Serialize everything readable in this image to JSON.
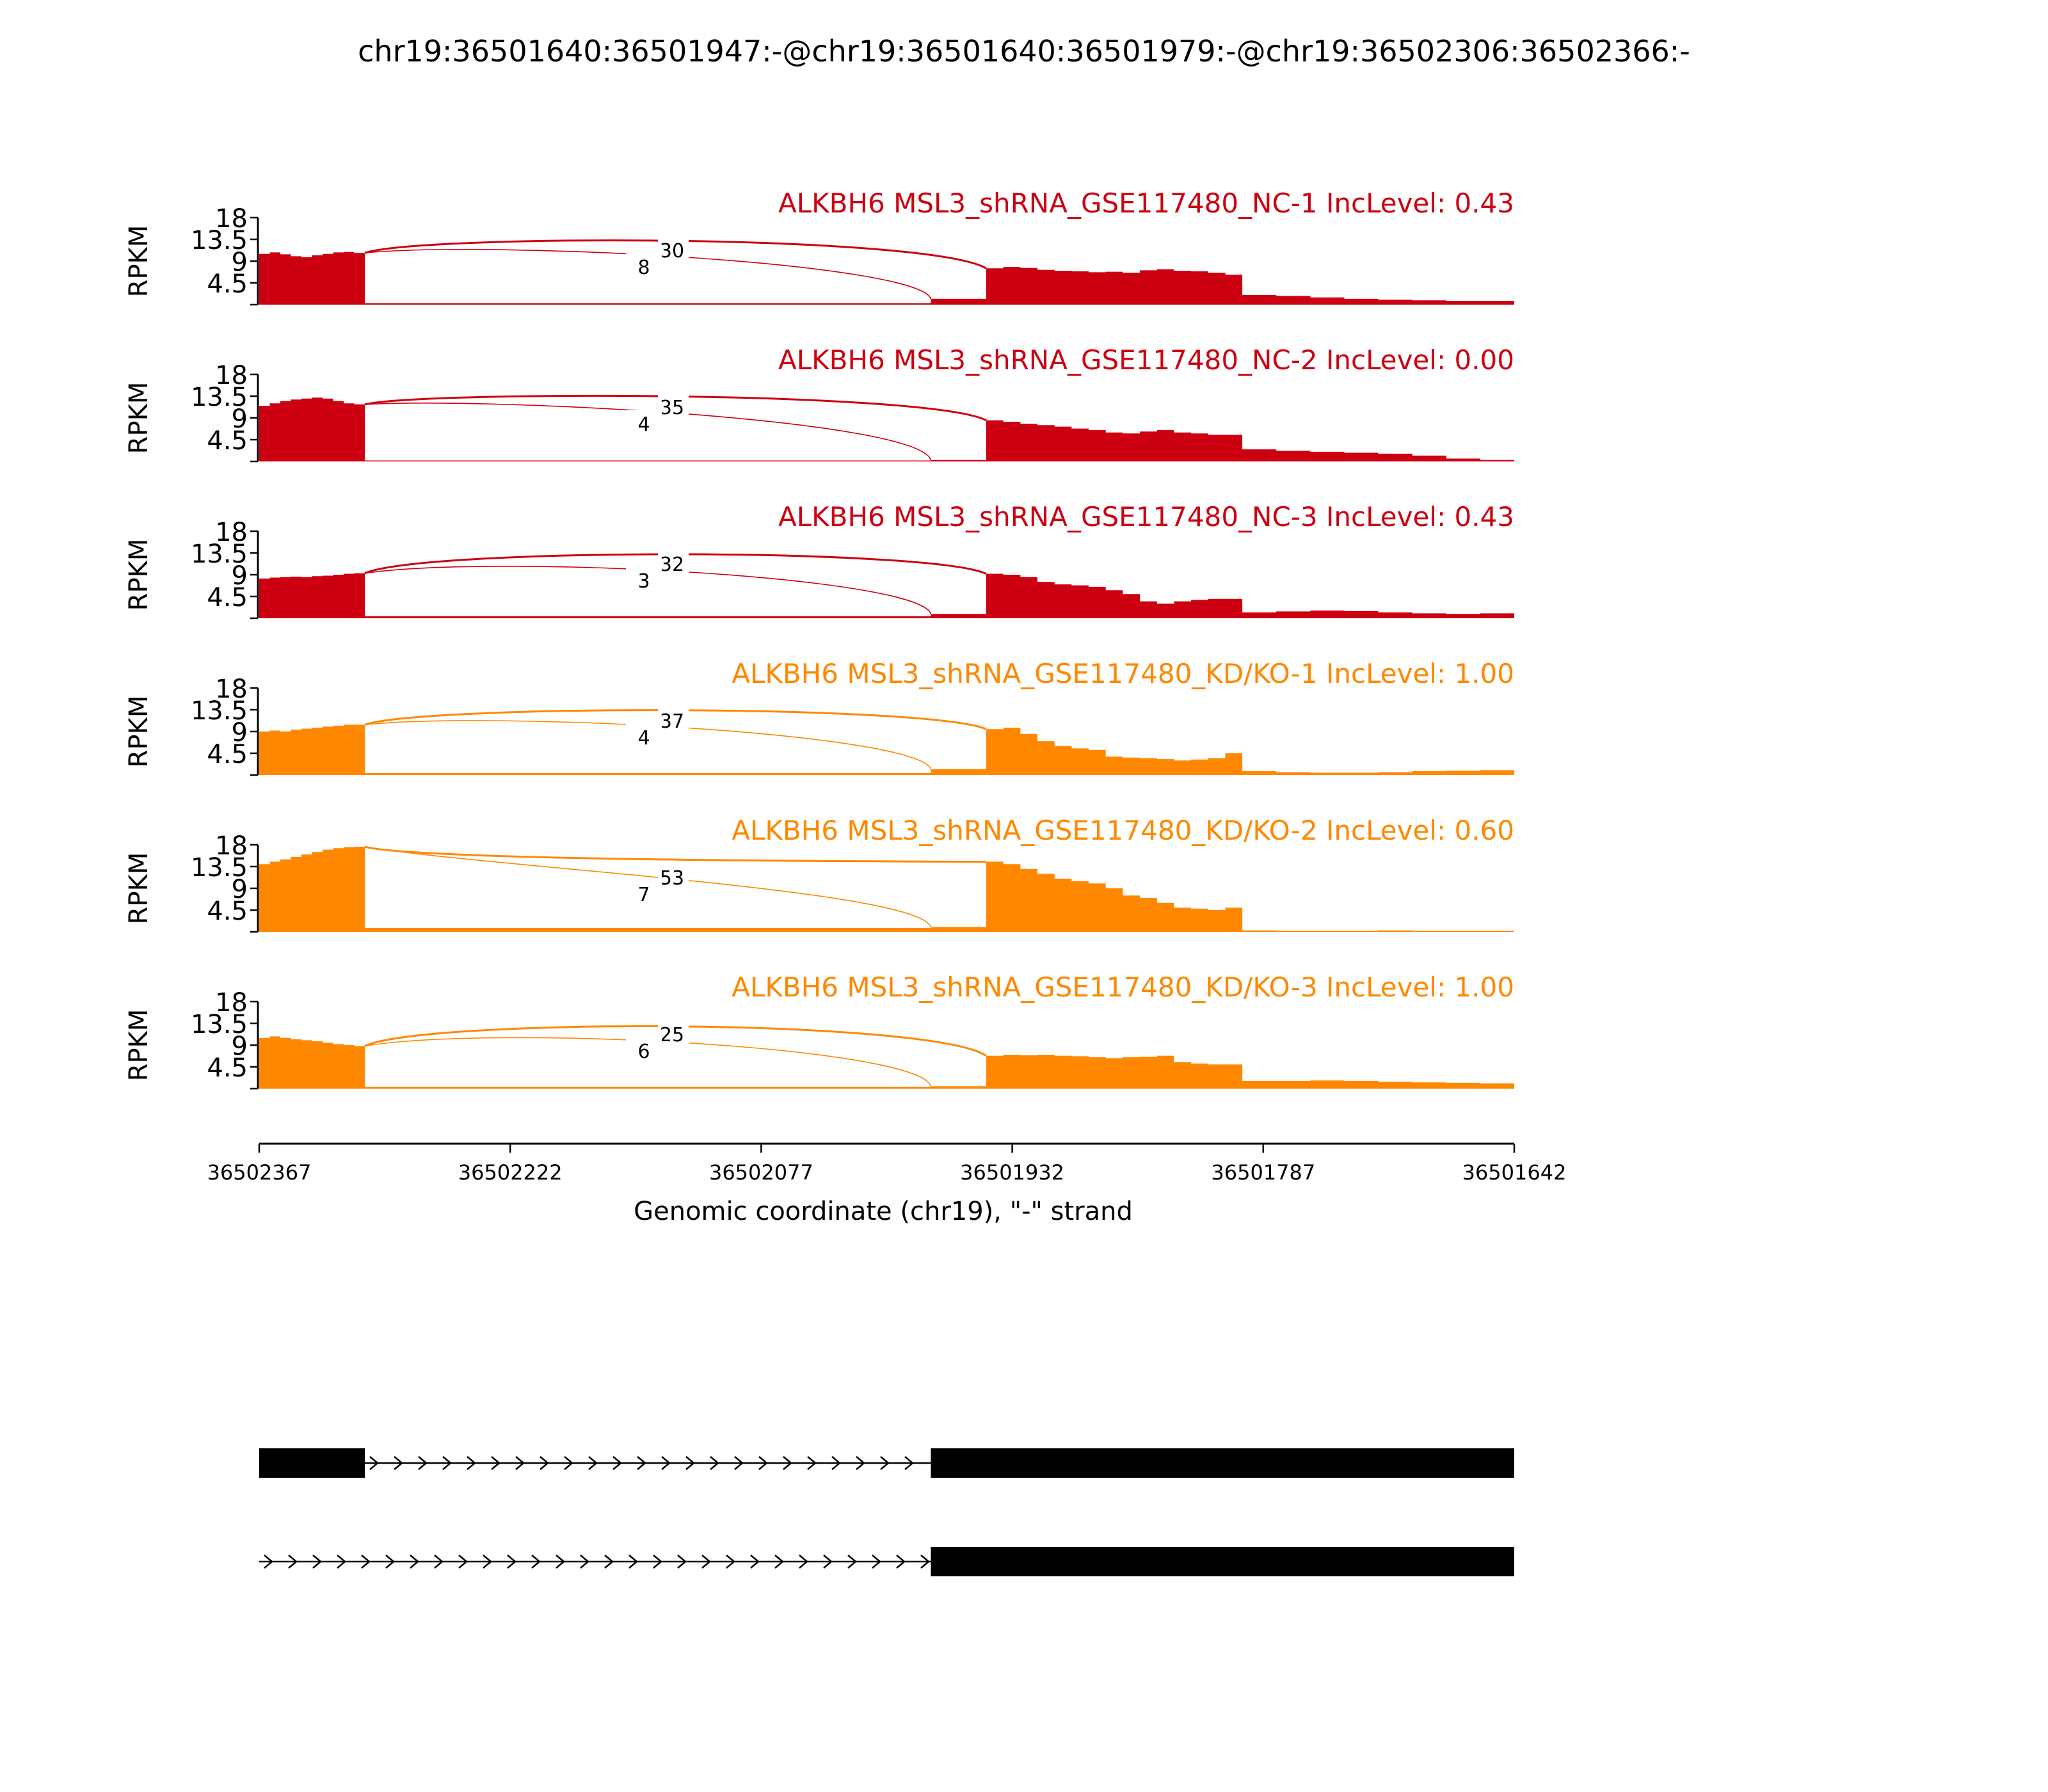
{
  "chart_data": {
    "type": "sashimi",
    "title": "chr19:36501640:36501947:-@chr19:36501640:36501979:-@chr19:36502306:36502366:-",
    "xlabel": "Genomic coordinate (chr19), \"-\" strand",
    "ylabel": "RPKM",
    "ylim": [
      0,
      18
    ],
    "yticks": [
      "18",
      "13.5",
      "9",
      "4.5"
    ],
    "x_reversed": true,
    "xlim": [
      36502367,
      36501642
    ],
    "xticks": [
      "36502367",
      "36502222",
      "36502077",
      "36501932",
      "36501787",
      "36501642"
    ],
    "exons": {
      "upstream": [
        36502367,
        36502306
      ],
      "alt_start": 36501979,
      "alt_end": 36501947,
      "downstream_end": 36501642
    },
    "colors": {
      "NC": "#cc0011",
      "KD": "#ff8800"
    },
    "tracks": [
      {
        "label": "ALKBH6 MSL3_shRNA_GSE117480_NC-1 IncLevel: 0.43",
        "group": "NC",
        "junction_counts": [
          "30",
          "8"
        ],
        "coverage": {
          "upstream": [
            10.5,
            10.8,
            10.4,
            10.0,
            9.8,
            10.2,
            10.5,
            10.8,
            10.9,
            10.7
          ],
          "intron": 0.3,
          "alt_exon": 1.2,
          "exon2_a": [
            7.5,
            7.8,
            7.6,
            7.2,
            7.0,
            6.9,
            6.7,
            6.8,
            6.6,
            7.1,
            7.3,
            7.0,
            6.9,
            6.6,
            6.2
          ],
          "exon2_b": [
            2.0,
            1.8,
            1.5,
            1.2,
            1.0,
            0.9,
            0.8,
            0.8
          ]
        }
      },
      {
        "label": "ALKBH6 MSL3_shRNA_GSE117480_NC-2 IncLevel: 0.00",
        "group": "NC",
        "junction_counts": [
          "35",
          "4"
        ],
        "coverage": {
          "upstream": [
            11.5,
            12.0,
            12.5,
            12.8,
            13.0,
            13.2,
            13.0,
            12.5,
            12.0,
            11.8
          ],
          "intron": 0.2,
          "alt_exon": 0.3,
          "exon2_a": [
            8.5,
            8.2,
            7.8,
            7.5,
            7.2,
            6.8,
            6.5,
            6.0,
            5.8,
            6.2,
            6.5,
            6.0,
            5.8,
            5.5,
            5.5
          ],
          "exon2_b": [
            2.5,
            2.2,
            2.0,
            1.8,
            1.6,
            1.2,
            0.6,
            0.3
          ]
        }
      },
      {
        "label": "ALKBH6 MSL3_shRNA_GSE117480_NC-3 IncLevel: 0.43",
        "group": "NC",
        "junction_counts": [
          "32",
          "3"
        ],
        "coverage": {
          "upstream": [
            8.2,
            8.4,
            8.5,
            8.6,
            8.5,
            8.7,
            8.8,
            9.0,
            9.2,
            9.3
          ],
          "intron": 0.4,
          "alt_exon": 0.9,
          "exon2_a": [
            9.2,
            9.0,
            8.5,
            7.5,
            7.0,
            6.8,
            6.5,
            5.8,
            5.0,
            3.5,
            3.0,
            3.5,
            3.8,
            4.0,
            4.0
          ],
          "exon2_b": [
            1.2,
            1.4,
            1.6,
            1.5,
            1.2,
            1.0,
            0.9,
            1.0
          ]
        }
      },
      {
        "label": "ALKBH6 MSL3_shRNA_GSE117480_KD/KO-1 IncLevel: 1.00",
        "group": "KD",
        "junction_counts": [
          "37",
          "4"
        ],
        "coverage": {
          "upstream": [
            9.0,
            9.2,
            9.0,
            9.4,
            9.6,
            9.8,
            10.0,
            10.2,
            10.4,
            10.4
          ],
          "intron": 0.4,
          "alt_exon": 1.2,
          "exon2_a": [
            9.5,
            9.8,
            8.5,
            7.0,
            6.0,
            5.5,
            5.2,
            3.8,
            3.6,
            3.5,
            3.3,
            3.0,
            3.2,
            3.5,
            4.5
          ],
          "exon2_b": [
            0.8,
            0.6,
            0.5,
            0.5,
            0.6,
            0.8,
            0.9,
            1.0
          ]
        }
      },
      {
        "label": "ALKBH6 MSL3_shRNA_GSE117480_KD/KO-2 IncLevel: 0.60",
        "group": "KD",
        "junction_counts": [
          "53",
          "7"
        ],
        "coverage": {
          "upstream": [
            14.0,
            14.5,
            15.0,
            15.5,
            16.0,
            16.5,
            17.0,
            17.3,
            17.5,
            17.6
          ],
          "intron": 0.8,
          "alt_exon": 1.0,
          "exon2_a": [
            14.5,
            14.0,
            13.0,
            12.0,
            11.0,
            10.5,
            10.0,
            9.0,
            7.5,
            7.0,
            6.0,
            5.0,
            4.8,
            4.5,
            5.0
          ],
          "exon2_b": [
            0.3,
            0.2,
            0.2,
            0.2,
            0.3,
            0.2,
            0.2,
            0.2
          ]
        }
      },
      {
        "label": "ALKBH6 MSL3_shRNA_GSE117480_KD/KO-3 IncLevel: 1.00",
        "group": "KD",
        "junction_counts": [
          "25",
          "6"
        ],
        "coverage": {
          "upstream": [
            10.5,
            10.8,
            10.5,
            10.2,
            10.0,
            9.8,
            9.5,
            9.2,
            9.0,
            8.8
          ],
          "intron": 0.4,
          "alt_exon": 0.5,
          "exon2_a": [
            6.8,
            7.0,
            6.9,
            7.0,
            6.8,
            6.7,
            6.5,
            6.3,
            6.5,
            6.6,
            6.8,
            5.5,
            5.2,
            5.0,
            5.0
          ],
          "exon2_b": [
            1.6,
            1.6,
            1.7,
            1.6,
            1.4,
            1.3,
            1.2,
            1.1
          ]
        }
      }
    ]
  }
}
